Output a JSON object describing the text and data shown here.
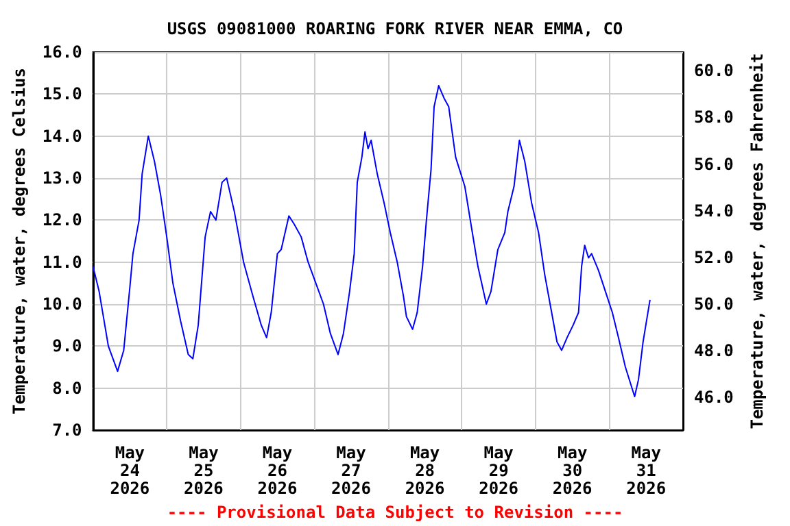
{
  "chart_data": {
    "type": "line",
    "title": "USGS 09081000 ROARING FORK RIVER NEAR EMMA, CO",
    "ylabel": "Temperature, water, degrees Celsius",
    "y2label": "Temperature, water, degrees Fahrenheit",
    "annotations": [
      "---- Provisional Data Subject to Revision ----"
    ],
    "series": [
      {
        "color": "#0000ff",
        "x": [
          "2026-05-24T00:00",
          "2026-05-24T02:00",
          "2026-05-24T05:00",
          "2026-05-24T08:00",
          "2026-05-24T10:00",
          "2026-05-24T12:00",
          "2026-05-24T13:00",
          "2026-05-24T15:00",
          "2026-05-24T16:00",
          "2026-05-24T18:00",
          "2026-05-24T20:00",
          "2026-05-24T22:00",
          "2026-05-25T00:00",
          "2026-05-25T02:00",
          "2026-05-25T04:30",
          "2026-05-25T07:00",
          "2026-05-25T08:30",
          "2026-05-25T10:15",
          "2026-05-25T12:30",
          "2026-05-25T14:15",
          "2026-05-25T16:00",
          "2026-05-25T18:00",
          "2026-05-25T19:30",
          "2026-05-25T22:00",
          "2026-05-26T01:00",
          "2026-05-26T04:00",
          "2026-05-26T06:45",
          "2026-05-26T08:30",
          "2026-05-26T10:00",
          "2026-05-26T12:00",
          "2026-05-26T13:15",
          "2026-05-26T15:45",
          "2026-05-26T17:30",
          "2026-05-26T19:45",
          "2026-05-26T22:00",
          "2026-05-27T00:00",
          "2026-05-27T03:00",
          "2026-05-27T05:15",
          "2026-05-27T07:45",
          "2026-05-27T09:30",
          "2026-05-27T11:30",
          "2026-05-27T13:00",
          "2026-05-27T14:00",
          "2026-05-27T15:30",
          "2026-05-27T16:30",
          "2026-05-27T17:30",
          "2026-05-27T18:30",
          "2026-05-27T20:30",
          "2026-05-27T22:45",
          "2026-05-28T00:45",
          "2026-05-28T03:00",
          "2026-05-28T05:00",
          "2026-05-28T06:00",
          "2026-05-28T08:00",
          "2026-05-28T09:30",
          "2026-05-28T11:15",
          "2026-05-28T12:30",
          "2026-05-28T14:00",
          "2026-05-28T15:00",
          "2026-05-28T16:30",
          "2026-05-28T18:15",
          "2026-05-28T19:45",
          "2026-05-28T22:00",
          "2026-05-29T01:00",
          "2026-05-29T03:00",
          "2026-05-29T05:15",
          "2026-05-29T08:00",
          "2026-05-29T09:30",
          "2026-05-29T11:45",
          "2026-05-29T14:00",
          "2026-05-29T15:00",
          "2026-05-29T17:00",
          "2026-05-29T18:45",
          "2026-05-29T20:30",
          "2026-05-29T22:45",
          "2026-05-30T01:00",
          "2026-05-30T03:00",
          "2026-05-30T05:15",
          "2026-05-30T07:00",
          "2026-05-30T08:30",
          "2026-05-30T10:15",
          "2026-05-30T12:15",
          "2026-05-30T14:00",
          "2026-05-30T15:00",
          "2026-05-30T16:00",
          "2026-05-30T17:15",
          "2026-05-30T18:15",
          "2026-05-30T20:30",
          "2026-05-30T22:45",
          "2026-05-31T01:00",
          "2026-05-31T03:00",
          "2026-05-31T05:15",
          "2026-05-31T08:15",
          "2026-05-31T09:30",
          "2026-05-31T11:00",
          "2026-05-31T13:15"
        ],
        "values": [
          10.9,
          10.3,
          9.0,
          8.4,
          8.9,
          10.4,
          11.2,
          12.0,
          13.1,
          14.0,
          13.4,
          12.6,
          11.6,
          10.5,
          9.6,
          8.8,
          8.7,
          9.5,
          11.6,
          12.2,
          12.0,
          12.9,
          13.0,
          12.2,
          11.0,
          10.2,
          9.5,
          9.2,
          9.8,
          11.2,
          11.3,
          12.1,
          11.9,
          11.6,
          11.0,
          10.6,
          10.0,
          9.3,
          8.8,
          9.3,
          10.3,
          11.2,
          12.9,
          13.5,
          14.1,
          13.7,
          13.9,
          13.1,
          12.4,
          11.7,
          11.0,
          10.2,
          9.7,
          9.4,
          9.8,
          10.9,
          12.0,
          13.2,
          14.7,
          15.2,
          14.9,
          14.7,
          13.5,
          12.8,
          11.9,
          10.9,
          10.0,
          10.3,
          11.3,
          11.7,
          12.2,
          12.8,
          13.9,
          13.4,
          12.4,
          11.7,
          10.7,
          9.8,
          9.1,
          8.9,
          9.2,
          9.5,
          9.8,
          10.9,
          11.4,
          11.1,
          11.2,
          10.8,
          10.3,
          9.8,
          9.2,
          8.5,
          7.8,
          8.2,
          9.1,
          10.1
        ]
      }
    ],
    "xlim": [
      "2026-05-24T00:00",
      "2026-06-01T00:00"
    ],
    "xticks": [
      {
        "value": "2026-05-24T12:00",
        "label": "May\n24\n2026"
      },
      {
        "value": "2026-05-25T00:00",
        "label": null
      },
      {
        "value": "2026-05-25T12:00",
        "label": "May\n25\n2026"
      },
      {
        "value": "2026-05-26T00:00",
        "label": null
      },
      {
        "value": "2026-05-26T12:00",
        "label": "May\n26\n2026"
      },
      {
        "value": "2026-05-27T00:00",
        "label": null
      },
      {
        "value": "2026-05-27T12:00",
        "label": "May\n27\n2026"
      },
      {
        "value": "2026-05-28T00:00",
        "label": null
      },
      {
        "value": "2026-05-28T12:00",
        "label": "May\n28\n2026"
      },
      {
        "value": "2026-05-29T00:00",
        "label": null
      },
      {
        "value": "2026-05-29T12:00",
        "label": "May\n29\n2026"
      },
      {
        "value": "2026-05-30T00:00",
        "label": null
      },
      {
        "value": "2026-05-30T12:00",
        "label": "May\n30\n2026"
      },
      {
        "value": "2026-05-31T00:00",
        "label": null
      },
      {
        "value": "2026-05-31T12:00",
        "label": "May\n31\n2026"
      }
    ],
    "ylim": [
      7,
      16
    ],
    "yticks": [
      {
        "value": 7,
        "label": "7.0"
      },
      {
        "value": 8,
        "label": "8.0"
      },
      {
        "value": 9,
        "label": "9.0"
      },
      {
        "value": 10,
        "label": "10.0"
      },
      {
        "value": 11,
        "label": "11.0"
      },
      {
        "value": 12,
        "label": "12.0"
      },
      {
        "value": 13,
        "label": "13.0"
      },
      {
        "value": 14,
        "label": "14.0"
      },
      {
        "value": 15,
        "label": "15.0"
      },
      {
        "value": 16,
        "label": "16.0"
      }
    ],
    "y2lim": [
      44.6,
      60.8
    ],
    "y2ticks": [
      {
        "value": 46,
        "label": "46.0"
      },
      {
        "value": 48,
        "label": "48.0"
      },
      {
        "value": 50,
        "label": "50.0"
      },
      {
        "value": 52,
        "label": "52.0"
      },
      {
        "value": 54,
        "label": "54.0"
      },
      {
        "value": 56,
        "label": "56.0"
      },
      {
        "value": 58,
        "label": "58.0"
      },
      {
        "value": 60,
        "label": "60.0"
      }
    ],
    "grid": true,
    "marker": "none",
    "line_style": "solid"
  }
}
